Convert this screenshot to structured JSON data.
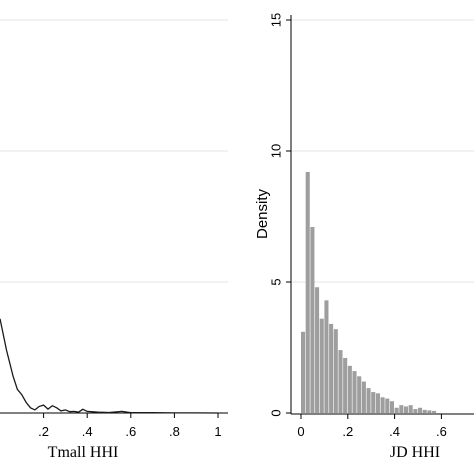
{
  "chart_data": [
    {
      "type": "line",
      "xlabel": "Tmall HHI",
      "ylabel": "",
      "xlim": [
        0,
        1
      ],
      "ylim": [
        0,
        15
      ],
      "xticks": [
        {
          "value": 0.2,
          "label": ".2"
        },
        {
          "value": 0.4,
          "label": ".4"
        },
        {
          "value": 0.6,
          "label": ".6"
        },
        {
          "value": 0.8,
          "label": ".8"
        },
        {
          "value": 1.0,
          "label": "1"
        }
      ],
      "ygrid": [
        5,
        10,
        15
      ],
      "grid": true,
      "series": [
        {
          "x": [
            0.0,
            0.03,
            0.06,
            0.08,
            0.1,
            0.12,
            0.14,
            0.16,
            0.18,
            0.2,
            0.22,
            0.24,
            0.26,
            0.28,
            0.3,
            0.32,
            0.34,
            0.36,
            0.38,
            0.4,
            0.45,
            0.5,
            0.56,
            0.6,
            0.7,
            0.8,
            0.9,
            1.0
          ],
          "values": [
            3.6,
            2.4,
            1.4,
            0.9,
            0.7,
            0.4,
            0.2,
            0.12,
            0.25,
            0.3,
            0.15,
            0.28,
            0.2,
            0.08,
            0.12,
            0.05,
            0.06,
            0.03,
            0.14,
            0.06,
            0.03,
            0.02,
            0.06,
            0.01,
            0.01,
            0.005,
            0.003,
            0.0
          ]
        }
      ]
    },
    {
      "type": "bar",
      "xlabel": "JD HHI",
      "ylabel": "Density",
      "xlim": [
        0,
        1
      ],
      "ylim": [
        0,
        15
      ],
      "bin_width": 0.02,
      "bin_start": 0.0,
      "values": [
        3.1,
        9.2,
        7.1,
        4.8,
        3.6,
        4.3,
        3.4,
        3.2,
        2.4,
        2.1,
        1.8,
        1.6,
        1.4,
        1.2,
        0.95,
        0.8,
        0.75,
        0.6,
        0.55,
        0.45,
        0.2,
        0.3,
        0.25,
        0.3,
        0.15,
        0.2,
        0.12,
        0.1,
        0.08
      ],
      "xticks": [
        {
          "value": 0.0,
          "label": "0"
        },
        {
          "value": 0.2,
          "label": ".2"
        },
        {
          "value": 0.4,
          "label": ".4"
        },
        {
          "value": 0.6,
          "label": ".6"
        }
      ],
      "yticks": [
        {
          "value": 0,
          "label": "0"
        },
        {
          "value": 5,
          "label": "5"
        },
        {
          "value": 10,
          "label": "10"
        },
        {
          "value": 15,
          "label": "15"
        }
      ],
      "grid": true,
      "bar_color": "#9e9e9e"
    }
  ]
}
